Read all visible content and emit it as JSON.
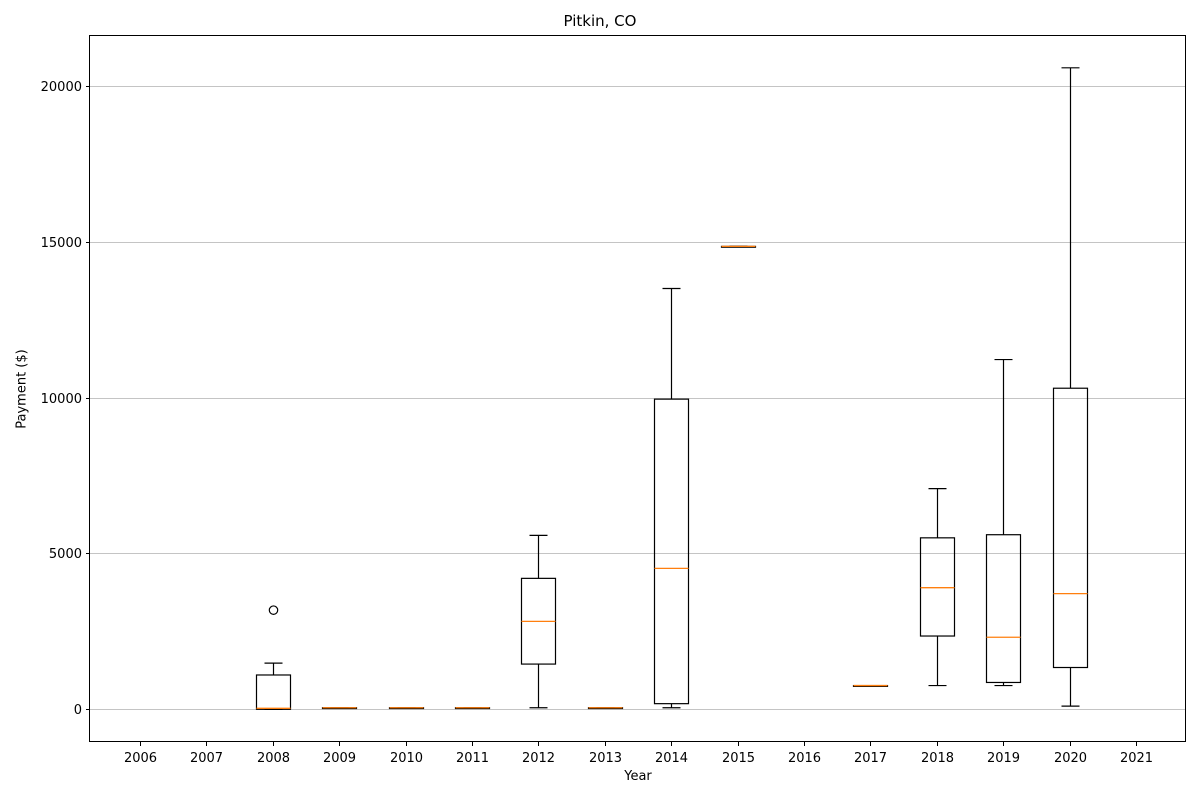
{
  "chart_data": {
    "type": "box",
    "title": "Pitkin, CO",
    "xlabel": "Year",
    "ylabel": "Payment ($)",
    "categories": [
      "2006",
      "2007",
      "2008",
      "2009",
      "2010",
      "2011",
      "2012",
      "2013",
      "2014",
      "2015",
      "2016",
      "2017",
      "2018",
      "2019",
      "2020",
      "2021"
    ],
    "ylim": [
      -1050,
      21600
    ],
    "yticks": [
      0,
      5000,
      10000,
      15000,
      20000
    ],
    "grid": "y",
    "colors": {
      "box": "#000000",
      "median": "#ff7f0e",
      "grid": "#b0b0b0"
    },
    "boxes": [
      {
        "x": "2008",
        "whisker_low": 0,
        "q1": 0,
        "median": 30,
        "q3": 1100,
        "whisker_high": 1480,
        "outliers": [
          3180
        ]
      },
      {
        "x": "2009",
        "whisker_low": 50,
        "q1": 50,
        "median": 50,
        "q3": 50,
        "whisker_high": 50,
        "outliers": []
      },
      {
        "x": "2010",
        "whisker_low": 50,
        "q1": 50,
        "median": 50,
        "q3": 50,
        "whisker_high": 50,
        "outliers": []
      },
      {
        "x": "2011",
        "whisker_low": 50,
        "q1": 50,
        "median": 50,
        "q3": 50,
        "whisker_high": 50,
        "outliers": []
      },
      {
        "x": "2012",
        "whisker_low": 50,
        "q1": 1450,
        "median": 2820,
        "q3": 4200,
        "whisker_high": 5580,
        "outliers": []
      },
      {
        "x": "2013",
        "whisker_low": 50,
        "q1": 50,
        "median": 50,
        "q3": 50,
        "whisker_high": 50,
        "outliers": []
      },
      {
        "x": "2014",
        "whisker_low": 50,
        "q1": 180,
        "median": 4520,
        "q3": 9950,
        "whisker_high": 13500,
        "outliers": []
      },
      {
        "x": "2015",
        "whisker_low": 14850,
        "q1": 14850,
        "median": 14850,
        "q3": 14850,
        "whisker_high": 14850,
        "outliers": []
      },
      {
        "x": "2017",
        "whisker_low": 760,
        "q1": 760,
        "median": 760,
        "q3": 760,
        "whisker_high": 760,
        "outliers": []
      },
      {
        "x": "2018",
        "whisker_low": 760,
        "q1": 2350,
        "median": 3900,
        "q3": 5500,
        "whisker_high": 7080,
        "outliers": []
      },
      {
        "x": "2019",
        "whisker_low": 760,
        "q1": 860,
        "median": 2310,
        "q3": 5600,
        "whisker_high": 11220,
        "outliers": []
      },
      {
        "x": "2020",
        "whisker_low": 100,
        "q1": 1340,
        "median": 3710,
        "q3": 10300,
        "whisker_high": 20580,
        "outliers": []
      }
    ]
  }
}
